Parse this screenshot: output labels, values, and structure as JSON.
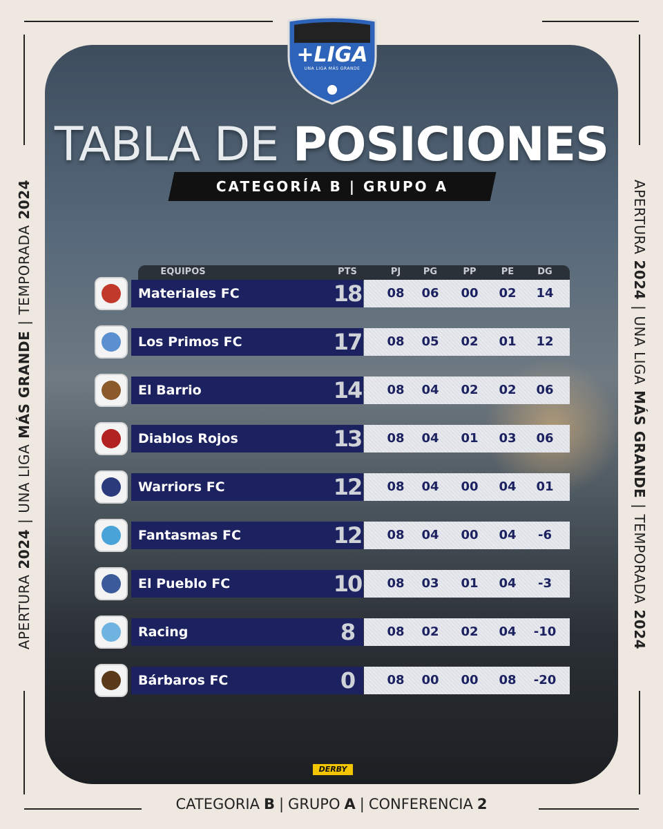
{
  "logo": {
    "title": "+LIGA",
    "tagline": "UNA LIGA MÁS GRANDE"
  },
  "title": {
    "light": "TABLA DE",
    "bold": "POSICIONES"
  },
  "subtitle": "CATEGORÍA B | GRUPO A",
  "side_text": [
    {
      "text": "APERTURA",
      "bold": false
    },
    {
      "text": "2024",
      "bold": true
    },
    {
      "text": "|",
      "bold": false
    },
    {
      "text": "UNA LIGA",
      "bold": false
    },
    {
      "text": "MÁS GRANDE",
      "bold": true
    },
    {
      "text": "|",
      "bold": false
    },
    {
      "text": "TEMPORADA",
      "bold": false
    },
    {
      "text": "2024",
      "bold": true
    }
  ],
  "table": {
    "columns": [
      "EQUIPOS",
      "PTS",
      "PJ",
      "PG",
      "PP",
      "PE",
      "DG"
    ],
    "rows": [
      [
        "Materiales FC",
        "18",
        "08",
        "06",
        "00",
        "02",
        "14"
      ],
      [
        "Los Primos FC",
        "17",
        "08",
        "05",
        "02",
        "01",
        "12"
      ],
      [
        "El Barrio",
        "14",
        "08",
        "04",
        "02",
        "02",
        "06"
      ],
      [
        "Diablos Rojos",
        "13",
        "08",
        "04",
        "01",
        "03",
        "06"
      ],
      [
        "Warriors FC",
        "12",
        "08",
        "04",
        "00",
        "04",
        "01"
      ],
      [
        "Fantasmas FC",
        "12",
        "08",
        "04",
        "00",
        "04",
        "-6"
      ],
      [
        "El Pueblo FC",
        "10",
        "08",
        "03",
        "01",
        "04",
        "-3"
      ],
      [
        "Racing",
        "8",
        "08",
        "02",
        "02",
        "04",
        "-10"
      ],
      [
        "Bárbaros FC",
        "0",
        "08",
        "00",
        "00",
        "08",
        "-20"
      ]
    ]
  },
  "sponsor": "DERBY",
  "footer": [
    {
      "text": "CATEGORIA",
      "bold": false
    },
    {
      "text": "B",
      "bold": true
    },
    {
      "text": "|",
      "bold": false
    },
    {
      "text": "GRUPO",
      "bold": false
    },
    {
      "text": "A",
      "bold": true
    },
    {
      "text": "|",
      "bold": false
    },
    {
      "text": "CONFERENCIA",
      "bold": false
    },
    {
      "text": "2",
      "bold": true
    }
  ]
}
